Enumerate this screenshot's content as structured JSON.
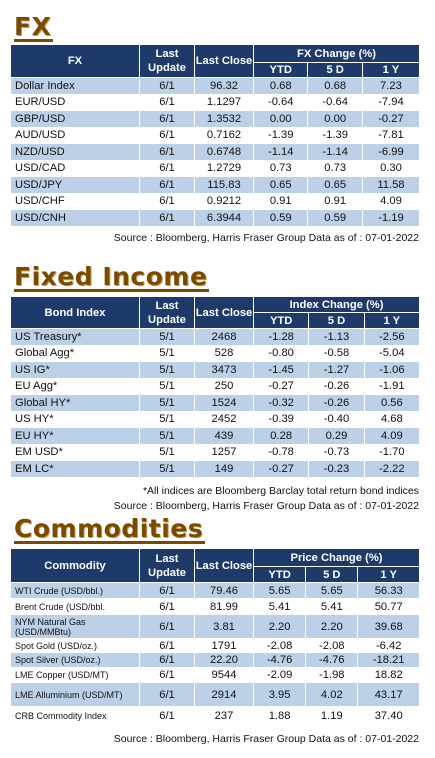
{
  "fx": {
    "title": "FX",
    "headers": {
      "name": "FX",
      "last_update": "Last Update",
      "last_close": "Last Close",
      "change_group": "FX Change (%)",
      "ytd": "YTD",
      "five_d": "5 D",
      "one_y": "1 Y"
    },
    "rows": [
      {
        "name": "Dollar Index",
        "update": "6/1",
        "close": "96.32",
        "ytd": "0.68",
        "d5": "0.68",
        "y1": "7.23"
      },
      {
        "name": "EUR/USD",
        "update": "6/1",
        "close": "1.1297",
        "ytd": "-0.64",
        "d5": "-0.64",
        "y1": "-7.94"
      },
      {
        "name": "GBP/USD",
        "update": "6/1",
        "close": "1.3532",
        "ytd": "0.00",
        "d5": "0.00",
        "y1": "-0.27"
      },
      {
        "name": "AUD/USD",
        "update": "6/1",
        "close": "0.7162",
        "ytd": "-1.39",
        "d5": "-1.39",
        "y1": "-7.81"
      },
      {
        "name": "NZD/USD",
        "update": "6/1",
        "close": "0.6748",
        "ytd": "-1.14",
        "d5": "-1.14",
        "y1": "-6.99"
      },
      {
        "name": "USD/CAD",
        "update": "6/1",
        "close": "1.2729",
        "ytd": "0.73",
        "d5": "0.73",
        "y1": "0.30"
      },
      {
        "name": "USD/JPY",
        "update": "6/1",
        "close": "115.83",
        "ytd": "0.65",
        "d5": "0.65",
        "y1": "11.58"
      },
      {
        "name": "USD/CHF",
        "update": "6/1",
        "close": "0.9212",
        "ytd": "0.91",
        "d5": "0.91",
        "y1": "4.09"
      },
      {
        "name": "USD/CNH",
        "update": "6/1",
        "close": "6.3944",
        "ytd": "0.59",
        "d5": "0.59",
        "y1": "-1.19"
      }
    ],
    "source": "Source : Bloomberg, Harris Fraser Group Data as of : 07-01-2022"
  },
  "fixed_income": {
    "title": "Fixed Income",
    "headers": {
      "name": "Bond Index",
      "last_update": "Last Update",
      "last_close": "Last Close",
      "change_group": "Index Change (%)",
      "ytd": "YTD",
      "five_d": "5 D",
      "one_y": "1 Y"
    },
    "rows": [
      {
        "name": "US Treasury*",
        "update": "5/1",
        "close": "2468",
        "ytd": "-1.28",
        "d5": "-1.13",
        "y1": "-2.56"
      },
      {
        "name": "Global Agg*",
        "update": "5/1",
        "close": "528",
        "ytd": "-0.80",
        "d5": "-0.58",
        "y1": "-5.04"
      },
      {
        "name": "US IG*",
        "update": "5/1",
        "close": "3473",
        "ytd": "-1.45",
        "d5": "-1.27",
        "y1": "-1.06"
      },
      {
        "name": "EU Agg*",
        "update": "5/1",
        "close": "250",
        "ytd": "-0.27",
        "d5": "-0.26",
        "y1": "-1.91"
      },
      {
        "name": "Global HY*",
        "update": "5/1",
        "close": "1524",
        "ytd": "-0.32",
        "d5": "-0.26",
        "y1": "0.56"
      },
      {
        "name": "US HY*",
        "update": "5/1",
        "close": "2452",
        "ytd": "-0.39",
        "d5": "-0.40",
        "y1": "4.68"
      },
      {
        "name": "EU HY*",
        "update": "5/1",
        "close": "439",
        "ytd": "0.28",
        "d5": "0.29",
        "y1": "4.09"
      },
      {
        "name": "EM USD*",
        "update": "5/1",
        "close": "1257",
        "ytd": "-0.78",
        "d5": "-0.73",
        "y1": "-1.70"
      },
      {
        "name": "EM LC*",
        "update": "5/1",
        "close": "149",
        "ytd": "-0.27",
        "d5": "-0.23",
        "y1": "-2.22"
      }
    ],
    "note": "*All indices are Bloomberg Barclay total return bond indices",
    "source": "Source : Bloomberg, Harris Fraser Group Data as of : 07-01-2022"
  },
  "commodities": {
    "title": "Commodities",
    "headers": {
      "name": "Commodity",
      "last_update": "Last Update",
      "last_close": "Last Close",
      "change_group": "Price Change (%)",
      "ytd": "YTD",
      "five_d": "5 D",
      "one_y": "1 Y"
    },
    "rows": [
      {
        "name": "WTI Crude (USD/bbl.)",
        "update": "6/1",
        "close": "79.46",
        "ytd": "5.65",
        "d5": "5.65",
        "y1": "56.33"
      },
      {
        "name": "Brent Crude (USD/bbl.",
        "update": "6/1",
        "close": "81.99",
        "ytd": "5.41",
        "d5": "5.41",
        "y1": "50.77"
      },
      {
        "name": "NYM Natural Gas (USD/MMBtu)",
        "update": "6/1",
        "close": "3.81",
        "ytd": "2.20",
        "d5": "2.20",
        "y1": "39.68"
      },
      {
        "name": "Spot Gold (USD/oz.)",
        "update": "6/1",
        "close": "1791",
        "ytd": "-2.08",
        "d5": "-2.08",
        "y1": "-6.42"
      },
      {
        "name": "Spot Silver  (USD/oz.)",
        "update": "6/1",
        "close": "22.20",
        "ytd": "-4.76",
        "d5": "-4.76",
        "y1": "-18.21"
      },
      {
        "name": "LME Copper  (USD/MT)",
        "update": "6/1",
        "close": "9544",
        "ytd": "-2.09",
        "d5": "-1.98",
        "y1": "18.82"
      },
      {
        "name": "LME Alluminium (USD/MT)",
        "update": "6/1",
        "close": "2914",
        "ytd": "3.95",
        "d5": "4.02",
        "y1": "43.17"
      },
      {
        "name": "CRB Commodity Index",
        "update": "6/1",
        "close": "237",
        "ytd": "1.88",
        "d5": "1.19",
        "y1": "37.40"
      }
    ],
    "source": "Source : Bloomberg, Harris Fraser Group Data as of : 07-01-2022"
  }
}
